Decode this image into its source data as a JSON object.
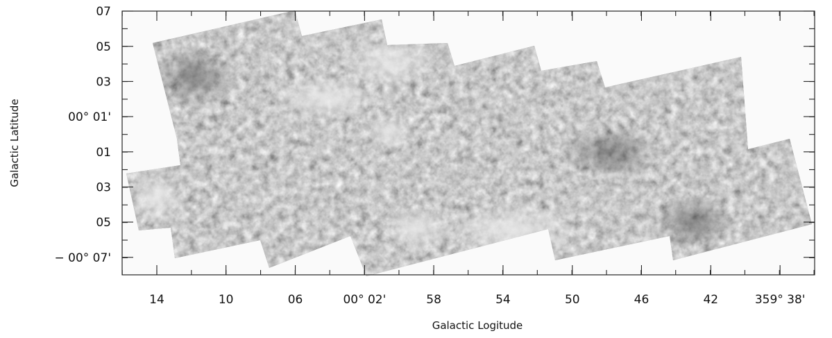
{
  "chart_data": {
    "type": "heatmap",
    "title": "",
    "xlabel": "Galactic Logitude",
    "ylabel": "Galactic Latitude",
    "x_ticks": [
      "14",
      "10",
      "06",
      "00° 02'",
      "58",
      "54",
      "50",
      "46",
      "42",
      "359° 38'"
    ],
    "y_ticks": [
      "07",
      "05",
      "03",
      "00° 01'",
      "01",
      "03",
      "05",
      "− 00° 07'"
    ],
    "x_tick_values_deg": [
      0.2333,
      0.1667,
      0.1,
      0.0333,
      -0.0333,
      -0.1,
      -0.1667,
      -0.2333,
      -0.3,
      -0.3667
    ],
    "y_tick_values_deg": [
      0.1167,
      0.0833,
      0.05,
      0.0167,
      -0.0167,
      -0.05,
      -0.0833,
      -0.1167
    ],
    "xlim": [
      "00° 16'",
      "359° 36'"
    ],
    "ylim": [
      "− 00° 08'",
      "00° 07'"
    ],
    "x_direction": "decreasing",
    "colormap": "grayscale",
    "colors": {
      "background": "#fafafa",
      "axes": "#222222",
      "map_mid": "#8e8e8e"
    },
    "mosaic_tiles": 8
  }
}
